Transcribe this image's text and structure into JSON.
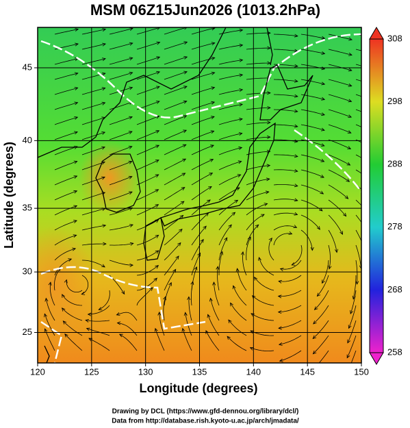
{
  "chart_data": {
    "type": "map",
    "title": "MSM 06Z15Jun2026 (1013.2hPa)",
    "x_label": "Longitude (degrees)",
    "y_label": "Latitude  (degrees)",
    "xlim": [
      120,
      150
    ],
    "xticks": [
      120,
      125,
      130,
      135,
      140,
      145,
      150
    ],
    "ylim": [
      22.4,
      47.6
    ],
    "yticks": [
      25,
      30,
      35,
      40,
      45
    ],
    "grid": true,
    "colorbar_lim": [
      258,
      308
    ],
    "colorbar_ticks": [
      258,
      268,
      278,
      288,
      298,
      308
    ],
    "credits": [
      "Drawing by DCL (https://www.gfd-dennou.org/library/dcl/)",
      "Data from http://database.rish.kyoto-u.ac.jp/arch/jmadata/"
    ]
  }
}
